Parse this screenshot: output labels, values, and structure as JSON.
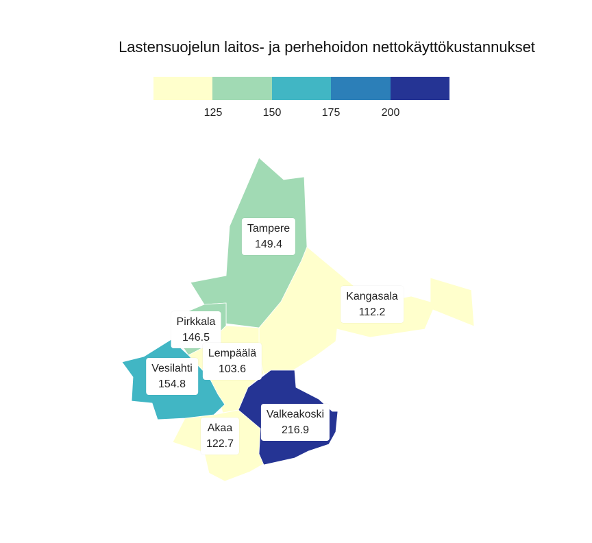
{
  "title": "Lastensuojelun laitos- ja perhehoidon nettokäyttökustannukset",
  "legend": {
    "colors": [
      "#ffffcc",
      "#a1dab4",
      "#41b6c4",
      "#2c7fb8",
      "#253494"
    ],
    "ticks": [
      "125",
      "150",
      "175",
      "200"
    ]
  },
  "regions": [
    {
      "key": "tampere",
      "name": "Tampere",
      "value": "149.4",
      "color": "#a1dab4"
    },
    {
      "key": "kangasala",
      "name": "Kangasala",
      "value": "112.2",
      "color": "#ffffcc"
    },
    {
      "key": "pirkkala",
      "name": "Pirkkala",
      "value": "146.5",
      "color": "#a1dab4"
    },
    {
      "key": "lempaala",
      "name": "Lempäälä",
      "value": "103.6",
      "color": "#ffffcc"
    },
    {
      "key": "vesilahti",
      "name": "Vesilahti",
      "value": "154.8",
      "color": "#41b6c4"
    },
    {
      "key": "valkeakoski",
      "name": "Valkeakoski",
      "value": "216.9",
      "color": "#253494"
    },
    {
      "key": "akaa",
      "name": "Akaa",
      "value": "122.7",
      "color": "#ffffcc"
    }
  ]
}
